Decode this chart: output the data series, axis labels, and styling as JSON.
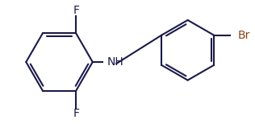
{
  "background_color": "#ffffff",
  "line_color": "#1a1a4a",
  "br_color": "#8B4513",
  "bond_width": 1.5,
  "font_size": 10,
  "nh_label": "NH",
  "f_top_label": "F",
  "f_bottom_label": "F",
  "br_label": "Br",
  "figsize": [
    3.16,
    1.54
  ],
  "dpi": 100
}
